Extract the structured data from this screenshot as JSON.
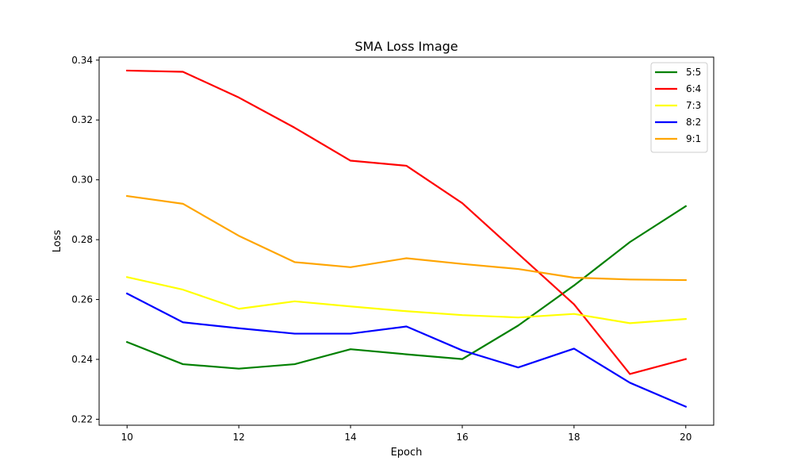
{
  "chart_data": {
    "type": "line",
    "title": "SMA Loss Image",
    "xlabel": "Epoch",
    "ylabel": "Loss",
    "x": [
      10,
      11,
      12,
      13,
      14,
      15,
      16,
      17,
      18,
      19,
      20
    ],
    "xlim": [
      9.5,
      20.5
    ],
    "ylim": [
      0.218,
      0.341
    ],
    "xticks": [
      10,
      12,
      14,
      16,
      18,
      20
    ],
    "yticks": [
      0.22,
      0.24,
      0.26,
      0.28,
      0.3,
      0.32,
      0.34
    ],
    "ytick_labels": [
      "0.22",
      "0.24",
      "0.26",
      "0.28",
      "0.30",
      "0.32",
      "0.34"
    ],
    "grid": false,
    "legend_position": "top-right",
    "series": [
      {
        "name": "5:5",
        "color": "#008000",
        "values": [
          0.2458,
          0.2384,
          0.2369,
          0.2384,
          0.2434,
          0.2417,
          0.2401,
          0.2513,
          0.2647,
          0.2792,
          0.2912
        ]
      },
      {
        "name": "6:4",
        "color": "#ff0000",
        "values": [
          0.3365,
          0.3361,
          0.3275,
          0.3174,
          0.3064,
          0.3047,
          0.2922,
          0.2753,
          0.2584,
          0.2351,
          0.2401
        ]
      },
      {
        "name": "7:3",
        "color": "#ffff00",
        "values": [
          0.2675,
          0.2633,
          0.2569,
          0.2594,
          0.2577,
          0.2561,
          0.2548,
          0.254,
          0.2552,
          0.2521,
          0.2535
        ]
      },
      {
        "name": "8:2",
        "color": "#0000ff",
        "values": [
          0.262,
          0.2524,
          0.2504,
          0.2486,
          0.2486,
          0.251,
          0.243,
          0.2373,
          0.2436,
          0.2322,
          0.2242
        ]
      },
      {
        "name": "9:1",
        "color": "#ffa500",
        "values": [
          0.2946,
          0.292,
          0.2813,
          0.2725,
          0.2708,
          0.2738,
          0.2719,
          0.2702,
          0.2673,
          0.2667,
          0.2665
        ]
      }
    ]
  }
}
